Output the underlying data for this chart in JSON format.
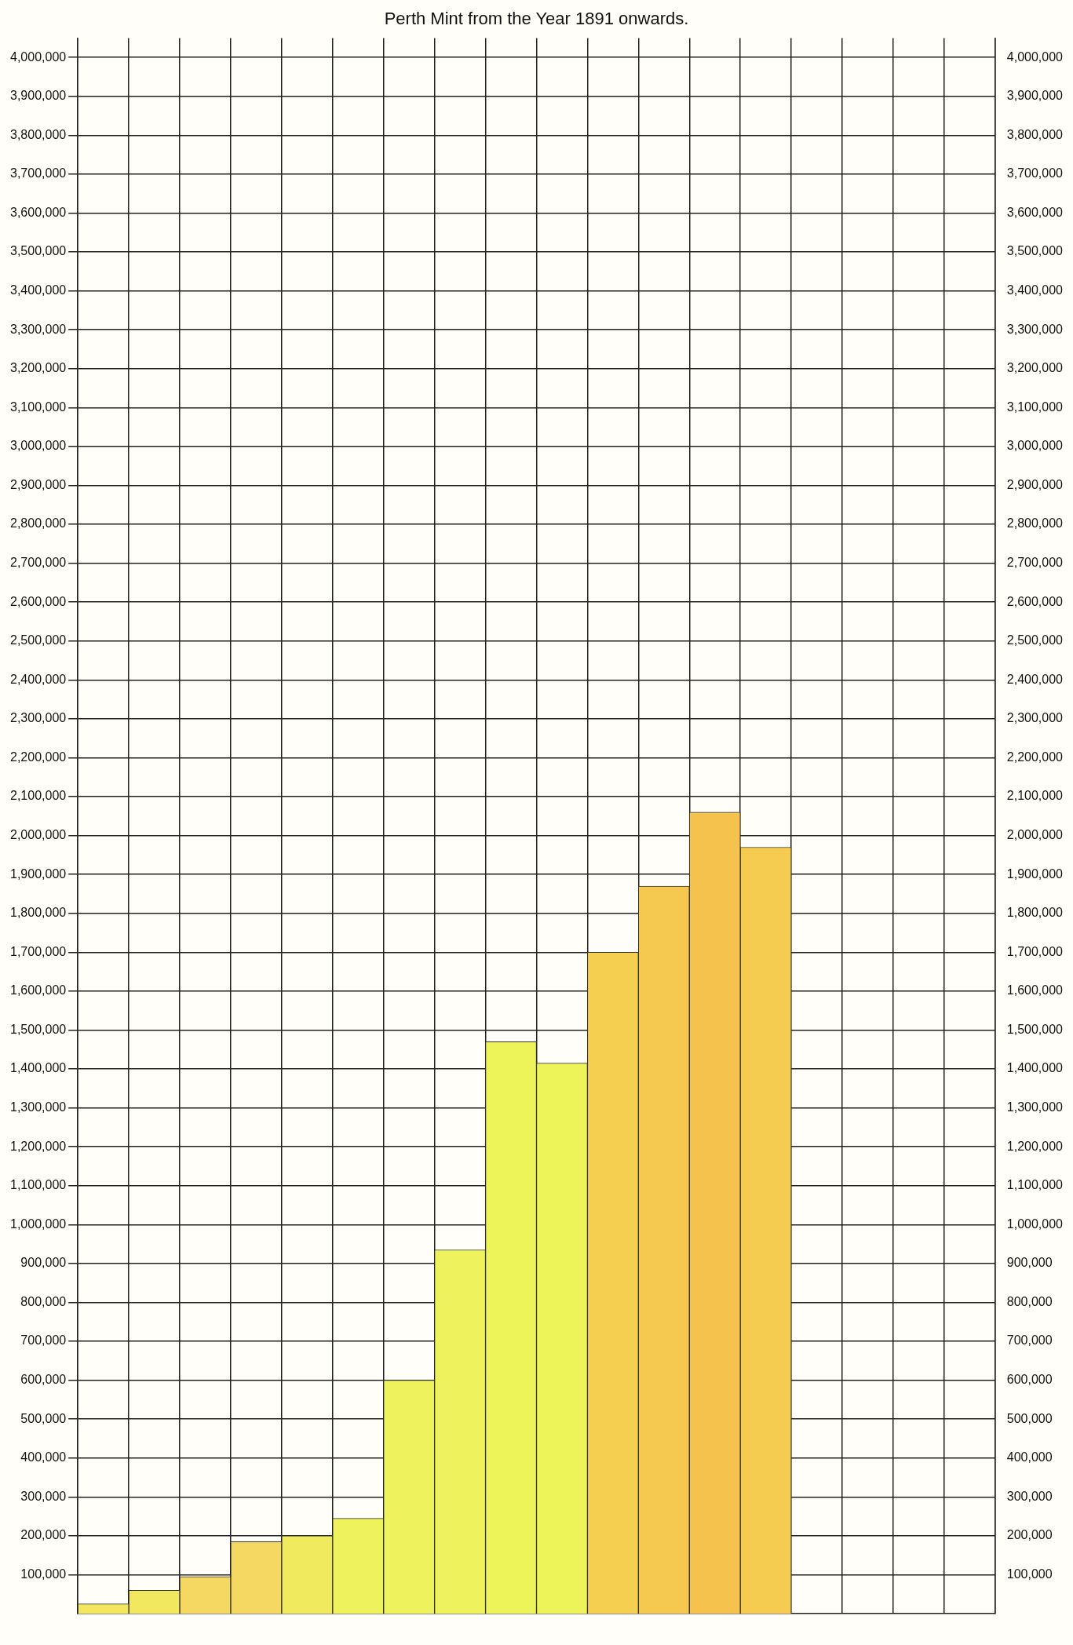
{
  "chart_data": {
    "type": "bar",
    "title": "Perth Mint from the Year 1891 onwards.",
    "categories": [
      null,
      null,
      null,
      null,
      null,
      null,
      null,
      null,
      null,
      null,
      null,
      null,
      null,
      null,
      null,
      null,
      null,
      null
    ],
    "values": [
      25000,
      60000,
      95000,
      185000,
      200000,
      245000,
      600000,
      935000,
      1470000,
      1415000,
      1700000,
      1870000,
      2060000,
      1970000,
      null,
      null,
      null,
      null
    ],
    "colors": [
      "#f2e860",
      "#f2e860",
      "#f4d862",
      "#f4d862",
      "#f0ea5e",
      "#eef25c",
      "#eef25c",
      "#eef25c",
      "#ecf45a",
      "#ecf45a",
      "#f5d050",
      "#f5c850",
      "#f5c24e",
      "#f5cc50",
      "#eef25c",
      "#eef25c",
      "#eef25c",
      "#eef25c"
    ],
    "ylim": [
      0,
      4050000
    ],
    "yticks": [
      {
        "value": 100000,
        "label": "100,000"
      },
      {
        "value": 200000,
        "label": "200,000"
      },
      {
        "value": 300000,
        "label": "300,000"
      },
      {
        "value": 400000,
        "label": "400,000"
      },
      {
        "value": 500000,
        "label": "500,000"
      },
      {
        "value": 600000,
        "label": "600,000"
      },
      {
        "value": 700000,
        "label": "700,000"
      },
      {
        "value": 800000,
        "label": "800,000"
      },
      {
        "value": 900000,
        "label": "900,000"
      },
      {
        "value": 1000000,
        "label": "1,000,000"
      },
      {
        "value": 1100000,
        "label": "1,100,000"
      },
      {
        "value": 1200000,
        "label": "1,200,000"
      },
      {
        "value": 1300000,
        "label": "1,300,000"
      },
      {
        "value": 1400000,
        "label": "1,400,000"
      },
      {
        "value": 1500000,
        "label": "1,500,000"
      },
      {
        "value": 1600000,
        "label": "1,600,000"
      },
      {
        "value": 1700000,
        "label": "1,700,000"
      },
      {
        "value": 1800000,
        "label": "1,800,000"
      },
      {
        "value": 1900000,
        "label": "1,900,000"
      },
      {
        "value": 2000000,
        "label": "2,000,000"
      },
      {
        "value": 2100000,
        "label": "2,100,000"
      },
      {
        "value": 2200000,
        "label": "2,200,000"
      },
      {
        "value": 2300000,
        "label": "2,300,000"
      },
      {
        "value": 2400000,
        "label": "2,400,000"
      },
      {
        "value": 2500000,
        "label": "2,500,000"
      },
      {
        "value": 2600000,
        "label": "2,600,000"
      },
      {
        "value": 2700000,
        "label": "2,700,000"
      },
      {
        "value": 2800000,
        "label": "2,800,000"
      },
      {
        "value": 2900000,
        "label": "2,900,000"
      },
      {
        "value": 3000000,
        "label": "3,000,000"
      },
      {
        "value": 3100000,
        "label": "3,100,000"
      },
      {
        "value": 3200000,
        "label": "3,200,000"
      },
      {
        "value": 3300000,
        "label": "3,300,000"
      },
      {
        "value": 3400000,
        "label": "3,400,000"
      },
      {
        "value": 3500000,
        "label": "3,500,000"
      },
      {
        "value": 3600000,
        "label": "3,600,000"
      },
      {
        "value": 3700000,
        "label": "3,700,000"
      },
      {
        "value": 3800000,
        "label": "3,800,000"
      },
      {
        "value": 3900000,
        "label": "3,900,000"
      },
      {
        "value": 4000000,
        "label": "4,000,000"
      }
    ],
    "y2lim": [
      0,
      4050000
    ],
    "y2ticks": [
      {
        "value": 100000,
        "label": "100,000"
      },
      {
        "value": 200000,
        "label": "200,000"
      },
      {
        "value": 300000,
        "label": "300,000"
      },
      {
        "value": 400000,
        "label": "400,000"
      },
      {
        "value": 500000,
        "label": "500,000"
      },
      {
        "value": 600000,
        "label": "600,000"
      },
      {
        "value": 700000,
        "label": "700,000"
      },
      {
        "value": 800000,
        "label": "800,000"
      },
      {
        "value": 900000,
        "label": "900,000"
      },
      {
        "value": 1000000,
        "label": "1,000,000"
      },
      {
        "value": 1100000,
        "label": "1,100,000"
      },
      {
        "value": 1200000,
        "label": "1,200,000"
      },
      {
        "value": 1300000,
        "label": "1,300,000"
      },
      {
        "value": 1400000,
        "label": "1,400,000"
      },
      {
        "value": 1500000,
        "label": "1,500,000"
      },
      {
        "value": 1600000,
        "label": "1,600,000"
      },
      {
        "value": 1700000,
        "label": "1,700,000"
      },
      {
        "value": 1800000,
        "label": "1,800,000"
      },
      {
        "value": 1900000,
        "label": "1,900,000"
      },
      {
        "value": 2000000,
        "label": "2,000,000"
      },
      {
        "value": 2100000,
        "label": "2,100,000"
      },
      {
        "value": 2200000,
        "label": "2,200,000"
      },
      {
        "value": 2300000,
        "label": "2,300,000"
      },
      {
        "value": 2400000,
        "label": "2,400,000"
      },
      {
        "value": 2500000,
        "label": "2,500,000"
      },
      {
        "value": 2600000,
        "label": "2,600,000"
      },
      {
        "value": 2700000,
        "label": "2,700,000"
      },
      {
        "value": 2800000,
        "label": "2,800,000"
      },
      {
        "value": 2900000,
        "label": "2,900,000"
      },
      {
        "value": 3000000,
        "label": "3,000,000"
      },
      {
        "value": 3100000,
        "label": "3,100,000"
      },
      {
        "value": 3200000,
        "label": "3,200,000"
      },
      {
        "value": 3300000,
        "label": "3,300,000"
      },
      {
        "value": 3400000,
        "label": "3,400,000"
      },
      {
        "value": 3500000,
        "label": "3,500,000"
      },
      {
        "value": 3600000,
        "label": "3,600,000"
      },
      {
        "value": 3700000,
        "label": "3,700,000"
      },
      {
        "value": 3800000,
        "label": "3,800,000"
      },
      {
        "value": 3900000,
        "label": "3,900,000"
      },
      {
        "value": 4000000,
        "label": "4,000,000"
      }
    ],
    "grid": true,
    "legend": false
  }
}
